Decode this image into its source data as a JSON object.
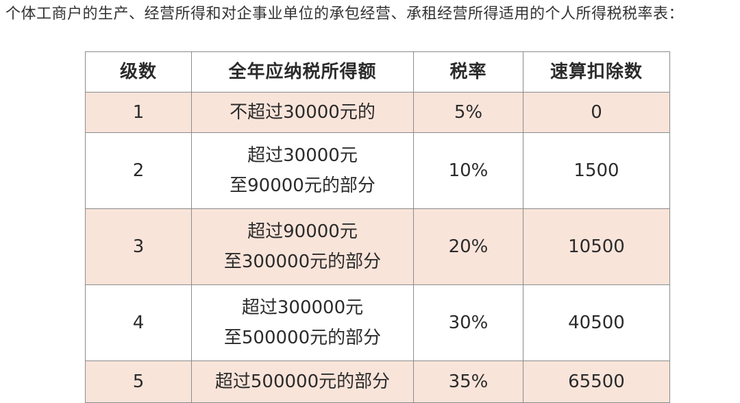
{
  "caption": "个体工商户的生产、经营所得和对企事业单位的承包经营、承租经营所得适用的个人所得税税率表：",
  "table": {
    "headers": [
      "级数",
      "全年应纳税所得额",
      "税率",
      "速算扣除数"
    ],
    "rows": [
      {
        "level": "1",
        "range": [
          "不超过30000元的"
        ],
        "rate": "5%",
        "quick_deduction": "0"
      },
      {
        "level": "2",
        "range": [
          "超过30000元",
          "至90000元的部分"
        ],
        "rate": "10%",
        "quick_deduction": "1500"
      },
      {
        "level": "3",
        "range": [
          "超过90000元",
          "至300000元的部分"
        ],
        "rate": "20%",
        "quick_deduction": "10500"
      },
      {
        "level": "4",
        "range": [
          "超过300000元",
          "至500000元的部分"
        ],
        "rate": "30%",
        "quick_deduction": "40500"
      },
      {
        "level": "5",
        "range": [
          "超过500000元的部分"
        ],
        "rate": "35%",
        "quick_deduction": "65500"
      }
    ]
  },
  "colors": {
    "shaded_row": "#f9e4da",
    "plain_row": "#ffffff",
    "border": "#8a8a8a"
  }
}
